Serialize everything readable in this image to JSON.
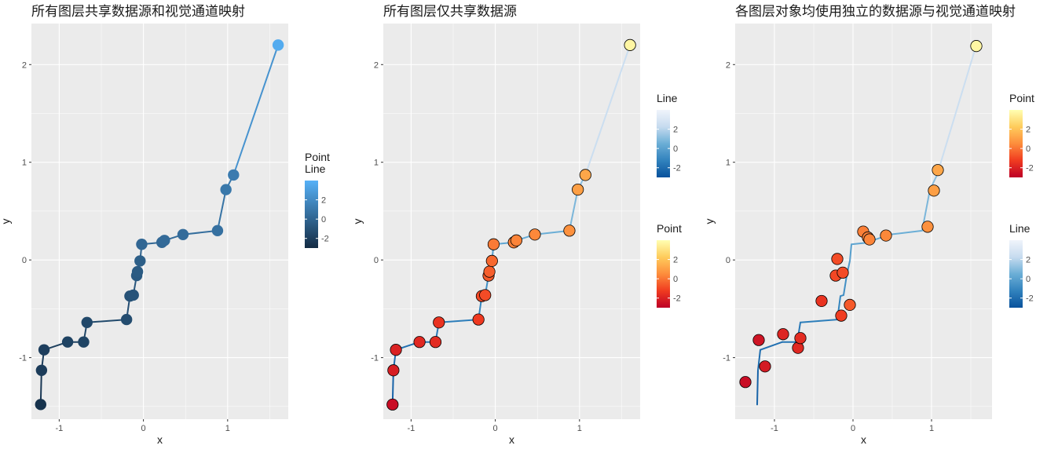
{
  "chart_data": [
    {
      "type": "line+scatter",
      "title": "所有图层共享数据源和视觉通道映射",
      "xlabel": "x",
      "ylabel": "y",
      "xlim": [
        -1.33,
        1.72
      ],
      "ylim": [
        -1.63,
        2.42
      ],
      "xticks": [
        -1,
        0,
        1
      ],
      "yticks": [
        -1,
        0,
        1,
        2
      ],
      "grid": true,
      "legend_position": "right",
      "legends": [
        {
          "title": "Point\nLine",
          "palette": "blues-dark",
          "colors": [
            "#132b43",
            "#56b1f7"
          ],
          "range": [
            -3.0,
            4.0
          ],
          "ticks": [
            2,
            0,
            -2
          ]
        }
      ],
      "line": {
        "x": [
          -1.22,
          -1.21,
          -1.18,
          -0.9,
          -0.71,
          -0.67,
          -0.2,
          -0.16,
          -0.12,
          -0.08,
          -0.07,
          -0.04,
          -0.02,
          0.22,
          0.25,
          0.47,
          0.88,
          0.98,
          1.07,
          1.6
        ],
        "y": [
          -1.48,
          -1.13,
          -0.92,
          -0.84,
          -0.84,
          -0.64,
          -0.61,
          -0.37,
          -0.36,
          -0.16,
          -0.12,
          -0.01,
          0.16,
          0.18,
          0.2,
          0.26,
          0.3,
          0.72,
          0.87,
          2.2
        ],
        "color_values": [
          -2.6,
          -2.1,
          -2.0,
          -1.8,
          -1.7,
          -1.5,
          -1.3,
          -1.0,
          -0.9,
          -0.6,
          -0.5,
          -0.3,
          0.1,
          0.2,
          0.3,
          0.4,
          0.6,
          1.0,
          1.2,
          3.7
        ]
      },
      "points": {
        "x": [
          -1.22,
          -1.21,
          -1.18,
          -0.9,
          -0.71,
          -0.67,
          -0.2,
          -0.16,
          -0.12,
          -0.08,
          -0.07,
          -0.04,
          -0.02,
          0.22,
          0.25,
          0.47,
          0.88,
          0.98,
          1.07,
          1.6
        ],
        "y": [
          -1.48,
          -1.13,
          -0.92,
          -0.84,
          -0.84,
          -0.64,
          -0.61,
          -0.37,
          -0.36,
          -0.16,
          -0.12,
          -0.01,
          0.16,
          0.18,
          0.2,
          0.26,
          0.3,
          0.72,
          0.87,
          2.2
        ],
        "color_values": [
          -2.6,
          -2.1,
          -2.0,
          -1.8,
          -1.7,
          -1.5,
          -1.3,
          -1.0,
          -0.9,
          -0.6,
          -0.5,
          -0.3,
          0.1,
          0.2,
          0.3,
          0.4,
          0.6,
          1.0,
          1.2,
          3.7
        ],
        "outline": false
      }
    },
    {
      "type": "line+scatter",
      "title": "所有图层仅共享数据源",
      "xlabel": "x",
      "ylabel": "y",
      "xlim": [
        -1.33,
        1.72
      ],
      "ylim": [
        -1.63,
        2.42
      ],
      "xticks": [
        -1,
        0,
        1
      ],
      "yticks": [
        -1,
        0,
        1,
        2
      ],
      "grid": true,
      "legend_position": "right",
      "legends": [
        {
          "title": "Line",
          "palette": "blues",
          "colors": [
            "#08519c",
            "#3182bd",
            "#6baed6",
            "#c6dbef",
            "#f0f4fb"
          ],
          "range": [
            -3.0,
            4.0
          ],
          "ticks": [
            2,
            0,
            -2
          ]
        },
        {
          "title": "Point",
          "palette": "ylorrd",
          "colors": [
            "#bd0026",
            "#f03b20",
            "#fd8d3c",
            "#fecc5c",
            "#ffffb2"
          ],
          "range": [
            -3.0,
            4.0
          ],
          "ticks": [
            2,
            0,
            -2
          ]
        }
      ],
      "line": {
        "x": [
          -1.22,
          -1.21,
          -1.18,
          -0.9,
          -0.71,
          -0.67,
          -0.2,
          -0.16,
          -0.12,
          -0.08,
          -0.07,
          -0.04,
          -0.02,
          0.22,
          0.25,
          0.47,
          0.88,
          0.98,
          1.07,
          1.6
        ],
        "y": [
          -1.48,
          -1.13,
          -0.92,
          -0.84,
          -0.84,
          -0.64,
          -0.61,
          -0.37,
          -0.36,
          -0.16,
          -0.12,
          -0.01,
          0.16,
          0.18,
          0.2,
          0.26,
          0.3,
          0.72,
          0.87,
          2.2
        ],
        "color_values": [
          -2.6,
          -2.1,
          -2.0,
          -1.8,
          -1.7,
          -1.5,
          -1.3,
          -1.0,
          -0.9,
          -0.6,
          -0.5,
          -0.3,
          0.1,
          0.2,
          0.3,
          0.4,
          0.6,
          1.0,
          1.2,
          3.7
        ]
      },
      "points": {
        "x": [
          -1.22,
          -1.21,
          -1.18,
          -0.9,
          -0.71,
          -0.67,
          -0.2,
          -0.16,
          -0.12,
          -0.08,
          -0.07,
          -0.04,
          -0.02,
          0.22,
          0.25,
          0.47,
          0.88,
          0.98,
          1.07,
          1.6
        ],
        "y": [
          -1.48,
          -1.13,
          -0.92,
          -0.84,
          -0.84,
          -0.64,
          -0.61,
          -0.37,
          -0.36,
          -0.16,
          -0.12,
          -0.01,
          0.16,
          0.18,
          0.2,
          0.26,
          0.3,
          0.72,
          0.87,
          2.2
        ],
        "color_values": [
          -2.6,
          -2.1,
          -2.0,
          -1.8,
          -1.7,
          -1.5,
          -1.3,
          -1.0,
          -0.9,
          -0.6,
          -0.5,
          -0.3,
          0.1,
          0.2,
          0.3,
          0.4,
          0.6,
          1.0,
          1.2,
          3.7
        ],
        "outline": true
      }
    },
    {
      "type": "line+scatter",
      "title": "各图层对象均使用独立的数据源与视觉通道映射",
      "xlabel": "x",
      "ylabel": "y",
      "xlim": [
        -1.5,
        1.77
      ],
      "ylim": [
        -1.63,
        2.42
      ],
      "xticks": [
        -1,
        0,
        1
      ],
      "yticks": [
        -1,
        0,
        1,
        2
      ],
      "grid": true,
      "legend_position": "right",
      "legends": [
        {
          "title": "Point",
          "palette": "ylorrd",
          "colors": [
            "#bd0026",
            "#f03b20",
            "#fd8d3c",
            "#fecc5c",
            "#ffffb2"
          ],
          "range": [
            -3.0,
            4.0
          ],
          "ticks": [
            2,
            0,
            -2
          ]
        },
        {
          "title": "Line",
          "palette": "blues",
          "colors": [
            "#08519c",
            "#3182bd",
            "#6baed6",
            "#c6dbef",
            "#f0f4fb"
          ],
          "range": [
            -3.0,
            4.0
          ],
          "ticks": [
            2,
            0,
            -2
          ]
        }
      ],
      "line": {
        "x": [
          -1.22,
          -1.21,
          -1.18,
          -0.9,
          -0.71,
          -0.67,
          -0.2,
          -0.16,
          -0.12,
          -0.08,
          -0.07,
          -0.04,
          -0.02,
          0.22,
          0.25,
          0.47,
          0.88,
          0.98,
          1.07,
          1.57
        ],
        "y": [
          -1.48,
          -1.13,
          -0.92,
          -0.84,
          -0.84,
          -0.64,
          -0.61,
          -0.37,
          -0.36,
          -0.16,
          -0.12,
          -0.01,
          0.16,
          0.18,
          0.2,
          0.26,
          0.3,
          0.72,
          0.87,
          2.2
        ],
        "color_values": [
          -2.6,
          -2.1,
          -2.0,
          -1.8,
          -1.7,
          -1.5,
          -1.3,
          -1.0,
          -0.9,
          -0.6,
          -0.5,
          -0.3,
          0.1,
          0.2,
          0.3,
          0.4,
          0.6,
          1.0,
          1.2,
          3.7
        ]
      },
      "points": {
        "x": [
          -1.37,
          -1.2,
          -1.12,
          -0.89,
          -0.7,
          -0.67,
          -0.4,
          -0.22,
          -0.2,
          -0.15,
          -0.13,
          -0.04,
          0.13,
          0.19,
          0.21,
          0.42,
          0.95,
          1.03,
          1.08,
          1.57
        ],
        "y": [
          -1.25,
          -0.82,
          -1.09,
          -0.76,
          -0.9,
          -0.8,
          -0.42,
          -0.16,
          0.01,
          -0.57,
          -0.13,
          -0.46,
          0.29,
          0.23,
          0.21,
          0.25,
          0.34,
          0.71,
          0.92,
          2.19
        ],
        "color_values": [
          -2.6,
          -2.4,
          -2.2,
          -1.9,
          -1.8,
          -1.7,
          -1.5,
          -1.0,
          -0.9,
          -1.2,
          -0.9,
          -0.6,
          0.2,
          0.2,
          0.3,
          0.4,
          0.6,
          1.0,
          1.2,
          3.7
        ],
        "outline": true
      }
    }
  ]
}
